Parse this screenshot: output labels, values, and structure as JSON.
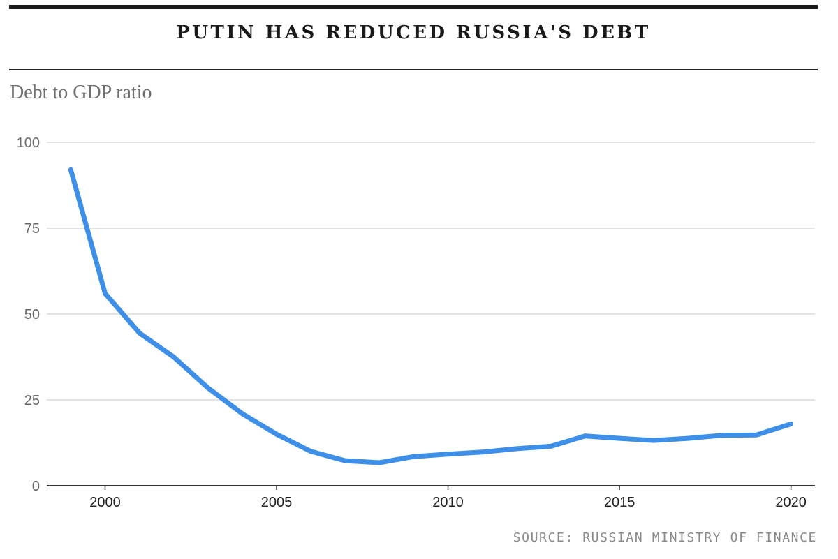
{
  "header": {
    "title": "PUTIN HAS REDUCED RUSSIA'S DEBT",
    "subtitle": "Debt to GDP ratio"
  },
  "footer": {
    "source": "SOURCE: RUSSIAN MINISTRY OF FINANCE"
  },
  "colors": {
    "line": "#3e8fe8",
    "grid": "#dcdcdc",
    "axis": "#333333"
  },
  "chart_data": {
    "type": "line",
    "title": "PUTIN HAS REDUCED RUSSIA'S DEBT",
    "ylabel": "Debt to GDP ratio",
    "xlabel": "",
    "ylim": [
      0,
      100
    ],
    "xlim": [
      1998.3,
      2020.7
    ],
    "yticks": [
      0,
      25,
      50,
      75,
      100
    ],
    "xticks": [
      2000,
      2005,
      2010,
      2015,
      2020
    ],
    "grid": true,
    "series": [
      {
        "x": [
          1999,
          2000,
          2001,
          2002,
          2003,
          2004,
          2005,
          2006,
          2007,
          2008,
          2009,
          2010,
          2011,
          2012,
          2013,
          2014,
          2015,
          2016,
          2017,
          2018,
          2019,
          2020
        ],
        "values": [
          92,
          56,
          44.5,
          37.5,
          28.5,
          21,
          15,
          10,
          7.3,
          6.7,
          8.5,
          9.2,
          9.8,
          10.8,
          11.5,
          14.5,
          13.8,
          13.2,
          13.8,
          14.7,
          14.8,
          18
        ]
      }
    ]
  }
}
